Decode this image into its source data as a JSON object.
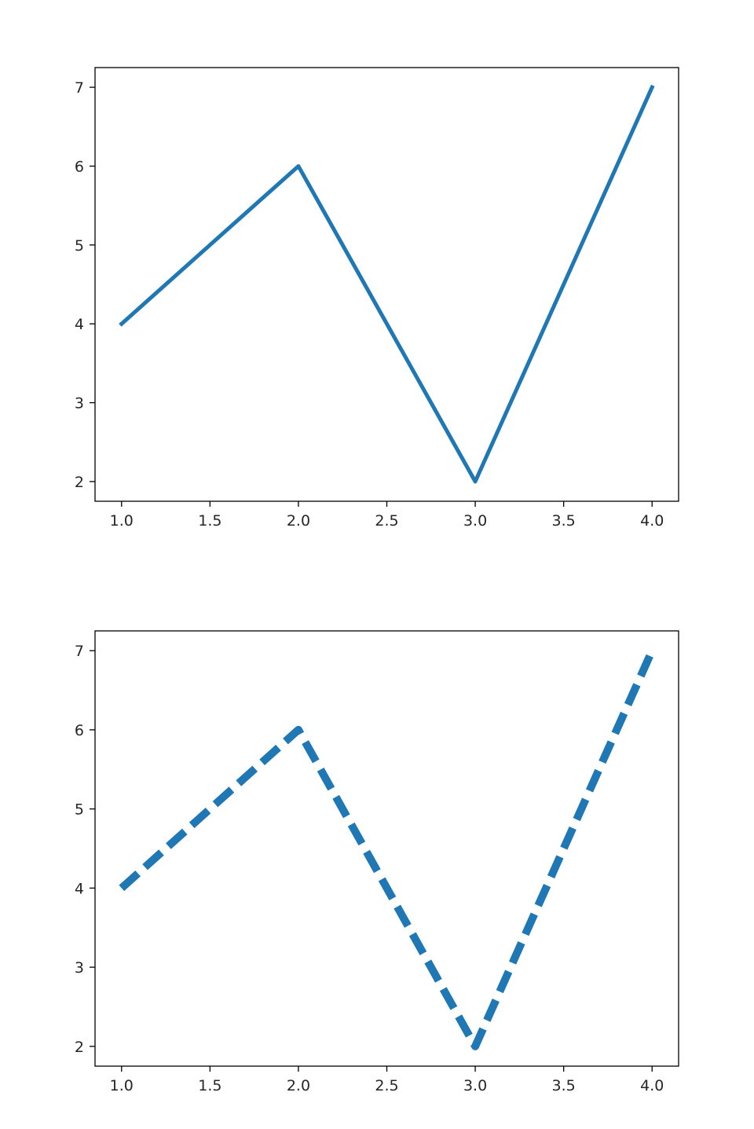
{
  "chart_data": [
    {
      "type": "line",
      "title": "",
      "xlabel": "",
      "ylabel": "",
      "x": [
        1,
        2,
        3,
        4
      ],
      "series": [
        {
          "values": [
            4,
            6,
            2,
            7
          ],
          "color": "#1f77b4",
          "style": "solid"
        }
      ],
      "xlim": [
        0.85,
        4.15
      ],
      "ylim": [
        1.75,
        7.25
      ],
      "xticks": [
        "1.0",
        "1.5",
        "2.0",
        "2.5",
        "3.0",
        "3.5",
        "4.0"
      ],
      "yticks": [
        "2",
        "3",
        "4",
        "5",
        "6",
        "7"
      ],
      "grid": false,
      "legend": "none"
    },
    {
      "type": "line",
      "title": "",
      "xlabel": "",
      "ylabel": "",
      "x": [
        1,
        2,
        3,
        4
      ],
      "series": [
        {
          "values": [
            4,
            6,
            2,
            7
          ],
          "color": "#1f77b4",
          "style": "dashed"
        }
      ],
      "xlim": [
        0.85,
        4.15
      ],
      "ylim": [
        1.75,
        7.25
      ],
      "xticks": [
        "1.0",
        "1.5",
        "2.0",
        "2.5",
        "3.0",
        "3.5",
        "4.0"
      ],
      "yticks": [
        "2",
        "3",
        "4",
        "5",
        "6",
        "7"
      ],
      "grid": false,
      "legend": "none"
    }
  ]
}
